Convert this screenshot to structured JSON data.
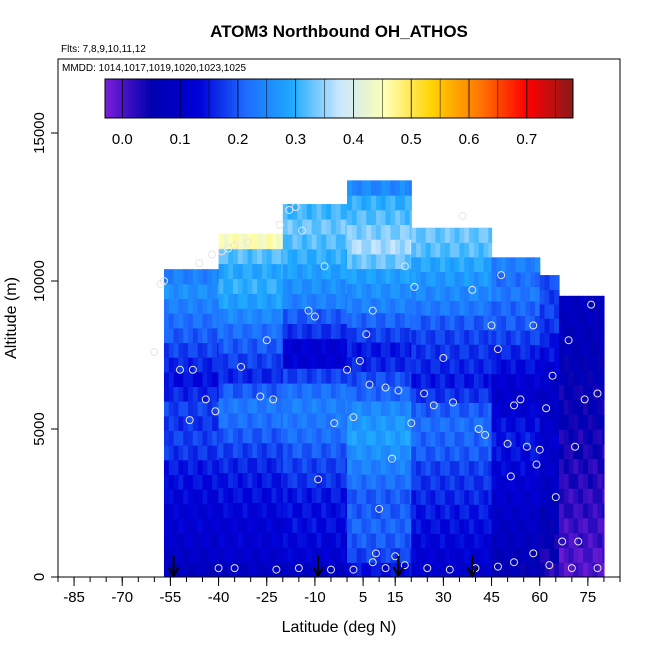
{
  "chart_data": {
    "type": "heatmap",
    "title": "ATOM3 Northbound OH_ATHOS",
    "flights_label": "Flts: 7,8,9,10,11,12",
    "dates_label": "MMDD: 1014,1017,1019,1020,1023,1025",
    "xlabel": "Latitude (deg N)",
    "ylabel": "Altitude (m)",
    "xlim": [
      -90,
      85
    ],
    "ylim": [
      0,
      17500
    ],
    "x_ticks": [
      -85,
      -70,
      -55,
      -40,
      -25,
      -10,
      5,
      15,
      30,
      45,
      60,
      75
    ],
    "x_tick_labels": [
      "-85",
      "-70",
      "-55",
      "-40",
      "-25",
      "-10",
      "5",
      "15",
      "30",
      "45",
      "60",
      "75"
    ],
    "y_ticks": [
      0,
      5000,
      10000,
      15000
    ],
    "y_tick_labels": [
      "0",
      "5000",
      "10000",
      "15000"
    ],
    "colorbar": {
      "min": -0.03,
      "max": 0.78,
      "ticks": [
        0.0,
        0.1,
        0.2,
        0.3,
        0.4,
        0.5,
        0.6,
        0.7
      ],
      "tick_labels": [
        "0.0",
        "0.1",
        "0.2",
        "0.3",
        "0.4",
        "0.5",
        "0.6",
        "0.7"
      ],
      "colors": [
        "#7b1fd8",
        "#0000b0",
        "#0000d8",
        "#1e6bff",
        "#1eaaff",
        "#c8e6ff",
        "#ffffb4",
        "#ffd200",
        "#ff7800",
        "#ff0000",
        "#8b1a1a"
      ]
    },
    "cell_width_deg": 1.5,
    "profiles": [
      {
        "lat_min": -57,
        "lat_max": -40,
        "alt_min": 0,
        "alt_max": 10400,
        "values": [
          0.08,
          0.1,
          0.11,
          0.12,
          0.12,
          0.13,
          0.14,
          0.15,
          0.17,
          0.18,
          0.17,
          0.18,
          0.16,
          0.14,
          0.16,
          0.18,
          0.2,
          0.22,
          0.24,
          0.26,
          0.24
        ]
      },
      {
        "lat_min": -40,
        "lat_max": -20,
        "alt_min": 0,
        "alt_max": 11600,
        "values": [
          0.09,
          0.11,
          0.12,
          0.12,
          0.13,
          0.14,
          0.15,
          0.16,
          0.18,
          0.2,
          0.22,
          0.23,
          0.2,
          0.16,
          0.18,
          0.2,
          0.22,
          0.25,
          0.28,
          0.3,
          0.29,
          0.32,
          0.45
        ]
      },
      {
        "lat_min": -20,
        "lat_max": 0,
        "alt_min": 0,
        "alt_max": 12600,
        "values": [
          0.1,
          0.12,
          0.13,
          0.14,
          0.14,
          0.15,
          0.17,
          0.18,
          0.2,
          0.22,
          0.23,
          0.24,
          0.22,
          0.18,
          0.12,
          0.12,
          0.17,
          0.2,
          0.24,
          0.26,
          0.28,
          0.3,
          0.32,
          0.33,
          0.31
        ]
      },
      {
        "lat_min": 0,
        "lat_max": 20,
        "alt_min": 0,
        "alt_max": 13400,
        "values": [
          0.14,
          0.18,
          0.2,
          0.21,
          0.2,
          0.2,
          0.22,
          0.24,
          0.26,
          0.28,
          0.27,
          0.25,
          0.21,
          0.19,
          0.16,
          0.15,
          0.18,
          0.21,
          0.24,
          0.26,
          0.28,
          0.33,
          0.36,
          0.34,
          0.32,
          0.3,
          0.25
        ]
      },
      {
        "lat_min": 20,
        "lat_max": 45,
        "alt_min": 0,
        "alt_max": 11800,
        "values": [
          0.11,
          0.12,
          0.13,
          0.14,
          0.15,
          0.16,
          0.17,
          0.18,
          0.2,
          0.21,
          0.22,
          0.2,
          0.17,
          0.15,
          0.16,
          0.17,
          0.18,
          0.2,
          0.23,
          0.25,
          0.27,
          0.29,
          0.32,
          0.33
        ]
      },
      {
        "lat_min": 45,
        "lat_max": 60,
        "alt_min": 0,
        "alt_max": 10800,
        "values": [
          0.06,
          0.07,
          0.08,
          0.09,
          0.1,
          0.11,
          0.12,
          0.13,
          0.14,
          0.15,
          0.14,
          0.12,
          0.11,
          0.12,
          0.14,
          0.16,
          0.18,
          0.2,
          0.21,
          0.23,
          0.22,
          0.24
        ]
      },
      {
        "lat_min": 60,
        "lat_max": 66,
        "alt_min": 0,
        "alt_max": 10200,
        "values": [
          0.03,
          0.04,
          0.05,
          0.06,
          0.07,
          0.08,
          0.09,
          0.1,
          0.1,
          0.11,
          0.1,
          0.09,
          0.09,
          0.1,
          0.12,
          0.14,
          0.15,
          0.17,
          0.18,
          0.18,
          0.19
        ]
      },
      {
        "lat_min": 66,
        "lat_max": 80,
        "alt_min": 0,
        "alt_max": 9500,
        "values": [
          0.0,
          0.0,
          0.01,
          0.01,
          0.02,
          0.02,
          0.03,
          0.03,
          0.04,
          0.04,
          0.05,
          0.05,
          0.05,
          0.06,
          0.06,
          0.07,
          0.07,
          0.08,
          0.08
        ]
      }
    ],
    "samples": [
      {
        "lat": -60,
        "alt": 7600
      },
      {
        "lat": -58,
        "alt": 9900
      },
      {
        "lat": -57,
        "alt": 10000
      },
      {
        "lat": -52,
        "alt": 7000
      },
      {
        "lat": -49,
        "alt": 5300
      },
      {
        "lat": -48,
        "alt": 7000
      },
      {
        "lat": -46,
        "alt": 10600
      },
      {
        "lat": -44,
        "alt": 6000
      },
      {
        "lat": -42,
        "alt": 10900
      },
      {
        "lat": -41,
        "alt": 5600
      },
      {
        "lat": -39,
        "alt": 11000
      },
      {
        "lat": -37,
        "alt": 11100
      },
      {
        "lat": -35,
        "alt": 11200
      },
      {
        "lat": -33,
        "alt": 7100
      },
      {
        "lat": -31,
        "alt": 11300
      },
      {
        "lat": -27,
        "alt": 6100
      },
      {
        "lat": -25,
        "alt": 8000
      },
      {
        "lat": -23,
        "alt": 6000
      },
      {
        "lat": -21,
        "alt": 11900
      },
      {
        "lat": -18,
        "alt": 12400
      },
      {
        "lat": -16,
        "alt": 12500
      },
      {
        "lat": -14,
        "alt": 11700
      },
      {
        "lat": -12,
        "alt": 9000
      },
      {
        "lat": -10,
        "alt": 8800
      },
      {
        "lat": -9,
        "alt": 3300
      },
      {
        "lat": -7,
        "alt": 10500
      },
      {
        "lat": -4,
        "alt": 5200
      },
      {
        "lat": 0,
        "alt": 7000
      },
      {
        "lat": 2,
        "alt": 5400
      },
      {
        "lat": 4,
        "alt": 7300
      },
      {
        "lat": 6,
        "alt": 8200
      },
      {
        "lat": 7,
        "alt": 6500
      },
      {
        "lat": 8,
        "alt": 9000
      },
      {
        "lat": 10,
        "alt": 2300
      },
      {
        "lat": 12,
        "alt": 6400
      },
      {
        "lat": 14,
        "alt": 4000
      },
      {
        "lat": 16,
        "alt": 6300
      },
      {
        "lat": 18,
        "alt": 10500
      },
      {
        "lat": 20,
        "alt": 5200
      },
      {
        "lat": 21,
        "alt": 9800
      },
      {
        "lat": 24,
        "alt": 6200
      },
      {
        "lat": 27,
        "alt": 5800
      },
      {
        "lat": 30,
        "alt": 7400
      },
      {
        "lat": 33,
        "alt": 5900
      },
      {
        "lat": 36,
        "alt": 12200
      },
      {
        "lat": 39,
        "alt": 9700
      },
      {
        "lat": 41,
        "alt": 5000
      },
      {
        "lat": 43,
        "alt": 4800
      },
      {
        "lat": 45,
        "alt": 8500
      },
      {
        "lat": 47,
        "alt": 7700
      },
      {
        "lat": 48,
        "alt": 10200
      },
      {
        "lat": 50,
        "alt": 4500
      },
      {
        "lat": 51,
        "alt": 3400
      },
      {
        "lat": 52,
        "alt": 5800
      },
      {
        "lat": 54,
        "alt": 6000
      },
      {
        "lat": 56,
        "alt": 4400
      },
      {
        "lat": 58,
        "alt": 8500
      },
      {
        "lat": 59,
        "alt": 3800
      },
      {
        "lat": 60,
        "alt": 4300
      },
      {
        "lat": 62,
        "alt": 5700
      },
      {
        "lat": 64,
        "alt": 6800
      },
      {
        "lat": 65,
        "alt": 2700
      },
      {
        "lat": 67,
        "alt": 1200
      },
      {
        "lat": 69,
        "alt": 8000
      },
      {
        "lat": 71,
        "alt": 4400
      },
      {
        "lat": 72,
        "alt": 1200
      },
      {
        "lat": 74,
        "alt": 6000
      },
      {
        "lat": 76,
        "alt": 9200
      },
      {
        "lat": 78,
        "alt": 6200
      },
      {
        "lat": -40,
        "alt": 300
      },
      {
        "lat": -35,
        "alt": 300
      },
      {
        "lat": -22,
        "alt": 250
      },
      {
        "lat": -15,
        "alt": 300
      },
      {
        "lat": -5,
        "alt": 250
      },
      {
        "lat": 2,
        "alt": 250
      },
      {
        "lat": 8,
        "alt": 500
      },
      {
        "lat": 9,
        "alt": 800
      },
      {
        "lat": 12,
        "alt": 300
      },
      {
        "lat": 15,
        "alt": 700
      },
      {
        "lat": 18,
        "alt": 400
      },
      {
        "lat": 25,
        "alt": 300
      },
      {
        "lat": 32,
        "alt": 250
      },
      {
        "lat": 40,
        "alt": 300
      },
      {
        "lat": 47,
        "alt": 350
      },
      {
        "lat": 52,
        "alt": 500
      },
      {
        "lat": 58,
        "alt": 800
      },
      {
        "lat": 63,
        "alt": 400
      },
      {
        "lat": 70,
        "alt": 300
      },
      {
        "lat": 78,
        "alt": 300
      }
    ],
    "arrows_lat": [
      -54,
      -9,
      16,
      39
    ]
  }
}
